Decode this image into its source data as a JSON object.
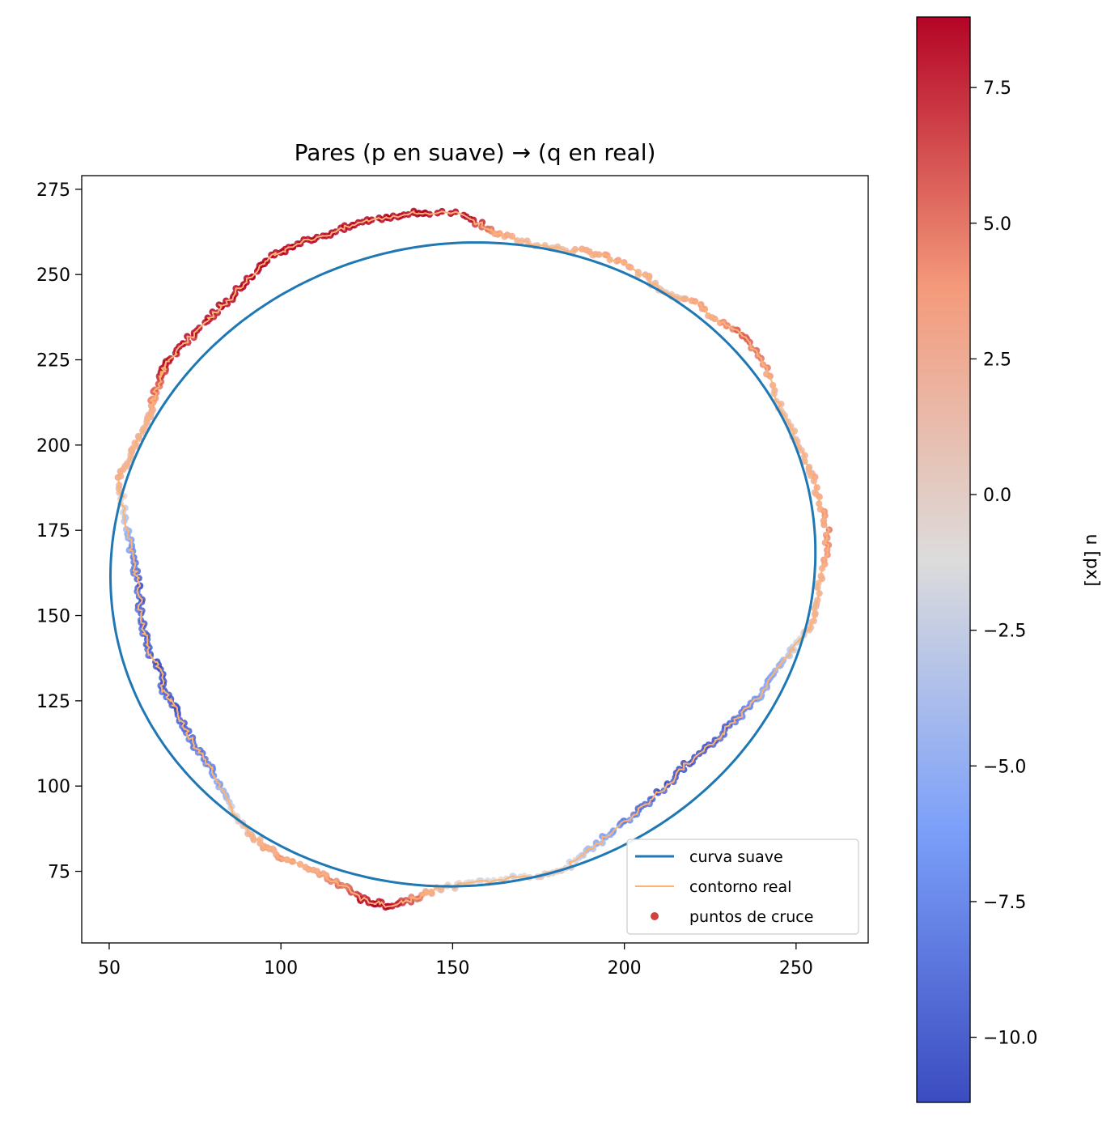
{
  "chart_data": {
    "type": "line",
    "title": "Pares (p en suave) → (q en real)",
    "xlabel": "",
    "ylabel": "",
    "xlim": [
      42,
      271
    ],
    "ylim": [
      54,
      279
    ],
    "xticks": [
      50,
      100,
      150,
      200,
      250
    ],
    "xtick_labels": [
      "50",
      "100",
      "150",
      "200",
      "250"
    ],
    "yticks": [
      75,
      100,
      125,
      150,
      175,
      200,
      225,
      250,
      275
    ],
    "ytick_labels": [
      "75",
      "100",
      "125",
      "150",
      "175",
      "200",
      "225",
      "250",
      "275"
    ],
    "grid": false,
    "legend_position": "lower-right",
    "legend": [
      "curva suave",
      "contorno real",
      "puntos de cruce"
    ],
    "series": [
      {
        "name": "curva suave",
        "kind": "ellipse",
        "center": [
          153,
          165
        ],
        "radii": [
          103,
          94
        ],
        "rotation_deg": 12,
        "color": "#1f77b4"
      },
      {
        "name": "contorno real",
        "color": "#ffb26e",
        "x": [
          142,
          153,
          159,
          163,
          170,
          178,
          186,
          193,
          200,
          207,
          210,
          215,
          222,
          228,
          233,
          237,
          242,
          245,
          248,
          251,
          253,
          255,
          257,
          259,
          259,
          257,
          256,
          255,
          251,
          249,
          246,
          243,
          240,
          236,
          232,
          228,
          224,
          218,
          213,
          208,
          203,
          198,
          193,
          188,
          183,
          176,
          167,
          160,
          152,
          146,
          141,
          136,
          131,
          127,
          123,
          119,
          114,
          108,
          100,
          96,
          92,
          88,
          85,
          82,
          80,
          77,
          74,
          72,
          70,
          68,
          66,
          65,
          63,
          61,
          60,
          59,
          59,
          58,
          57,
          56,
          55,
          54,
          53,
          55,
          57,
          59,
          61,
          62,
          63,
          64,
          65,
          66,
          67,
          70,
          74,
          78,
          82,
          86,
          90,
          94,
          98,
          102,
          108,
          114,
          120,
          126,
          132,
          138,
          142
        ],
        "y": [
          268,
          268,
          264,
          262,
          260,
          258,
          257,
          256,
          253,
          249,
          246,
          244,
          241,
          236,
          233,
          229,
          221,
          212,
          206,
          200,
          195,
          190,
          183,
          175,
          168,
          161,
          154,
          148,
          143,
          140,
          136,
          132,
          127,
          123,
          119,
          115,
          111,
          106,
          101,
          96,
          92,
          88,
          84,
          80,
          76,
          74,
          73,
          72,
          71,
          70,
          68,
          66,
          65,
          66,
          67,
          70,
          73,
          76,
          79,
          82,
          85,
          90,
          95,
          100,
          105,
          109,
          113,
          117,
          121,
          125,
          128,
          133,
          137,
          141,
          146,
          151,
          156,
          161,
          166,
          171,
          176,
          183,
          190,
          195,
          199,
          203,
          207,
          210,
          214,
          217,
          220,
          222,
          224,
          228,
          232,
          236,
          240,
          244,
          248,
          252,
          256,
          258,
          260,
          262,
          264,
          266,
          267,
          268,
          268
        ]
      },
      {
        "name": "puntos de cruce",
        "values_u_px_min": -11.2,
        "values_u_px_max": 8.8
      }
    ],
    "colorbar": {
      "label": "u [px]",
      "colormap": "coolwarm",
      "vmin": -11.2,
      "vmax": 8.8,
      "ticks": [
        -10.0,
        -7.5,
        -5.0,
        -2.5,
        0.0,
        2.5,
        5.0,
        7.5
      ],
      "tick_labels": [
        "−10.0",
        "−7.5",
        "−5.0",
        "−2.5",
        "0.0",
        "2.5",
        "5.0",
        "7.5"
      ]
    }
  }
}
